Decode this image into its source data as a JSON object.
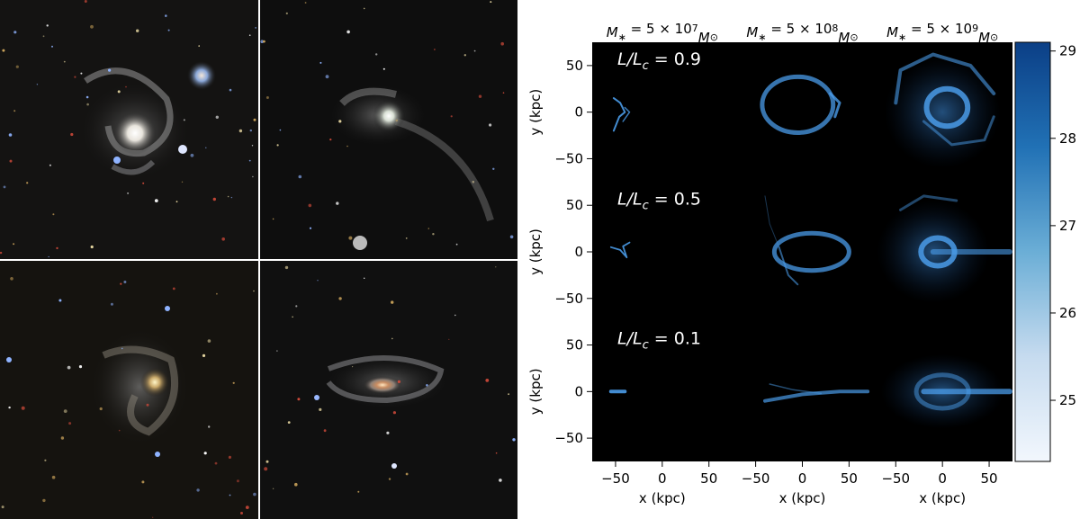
{
  "chart_data": {
    "type": "heatmap",
    "panel_grid": {
      "rows": 3,
      "columns": 3
    },
    "column_titles": [
      {
        "pre": "M",
        "sub": "∗",
        "mid": " = 5 × 10",
        "sup": "7",
        "post": "M",
        "post_sub": "⊙"
      },
      {
        "pre": "M",
        "sub": "∗",
        "mid": " = 5 × 10",
        "sup": "8",
        "post": "M",
        "post_sub": "⊙"
      },
      {
        "pre": "M",
        "sub": "∗",
        "mid": " = 5 × 10",
        "sup": "9",
        "post": "M",
        "post_sub": "⊙"
      }
    ],
    "row_labels": [
      {
        "pre": "L/L",
        "sub": "c",
        "post": " = 0.9"
      },
      {
        "pre": "L/L",
        "sub": "c",
        "post": " = 0.5"
      },
      {
        "pre": "L/L",
        "sub": "c",
        "post": " = 0.1"
      }
    ],
    "xlabel": "x (kpc)",
    "ylabel": "y (kpc)",
    "xlim": [
      -75,
      75
    ],
    "ylim": [
      -75,
      75
    ],
    "x_ticks": [
      -50,
      0,
      50
    ],
    "y_ticks": [
      50,
      0,
      -50
    ],
    "x_tick_labels": [
      "−50",
      "0",
      "50"
    ],
    "y_tick_labels": [
      "50",
      "0",
      "−50"
    ],
    "colorbar": {
      "range": [
        24.3,
        29.1
      ],
      "ticks": [
        25,
        26,
        27,
        28,
        29
      ],
      "color_low": "#f2f7fd",
      "color_high": "#0b3f86"
    },
    "panel_background": "#000000",
    "stream_color": "#4a9be8"
  },
  "photos": {
    "grid": {
      "rows": 2,
      "columns": 2
    },
    "divider_color": "#ffffff"
  }
}
